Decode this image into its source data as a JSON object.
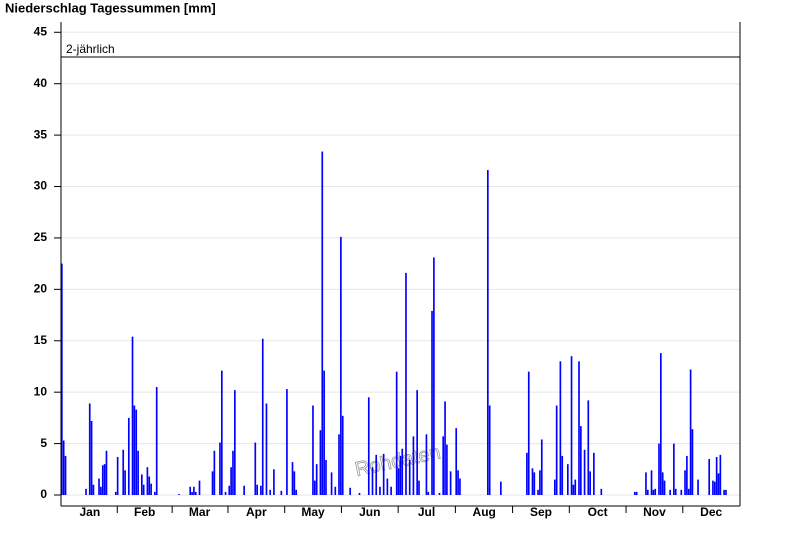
{
  "chart_data": {
    "type": "bar",
    "title": "Niederschlag Tagessummen [mm]",
    "watermark": "Rohdaten",
    "x": [
      1,
      2,
      3,
      14,
      16,
      17,
      18,
      21,
      22,
      23,
      24,
      25,
      30,
      31,
      34,
      35,
      37,
      39,
      40,
      41,
      42,
      44,
      45,
      47,
      48,
      49,
      51,
      52,
      64,
      70,
      71,
      72,
      73,
      75,
      82,
      83,
      86,
      87,
      89,
      91,
      92,
      93,
      94,
      99,
      105,
      106,
      108,
      109,
      111,
      113,
      115,
      119,
      122,
      125,
      126,
      127,
      136,
      137,
      138,
      140,
      141,
      142,
      143,
      146,
      148,
      150,
      151,
      152,
      156,
      161,
      166,
      168,
      170,
      172,
      174,
      176,
      178,
      181,
      182,
      183,
      184,
      186,
      188,
      190,
      192,
      193,
      197,
      198,
      200,
      201,
      204,
      206,
      207,
      208,
      210,
      213,
      214,
      215,
      230,
      231,
      237,
      251,
      252,
      254,
      255,
      257,
      258,
      259,
      266,
      267,
      269,
      270,
      273,
      275,
      276,
      277,
      279,
      280,
      282,
      284,
      285,
      287,
      291,
      309,
      310,
      315,
      316,
      318,
      319,
      320,
      322,
      323,
      324,
      325,
      328,
      330,
      331,
      334,
      336,
      337,
      338,
      339,
      340,
      343,
      349,
      351,
      352,
      353,
      354,
      355,
      357,
      358
    ],
    "values": [
      22.5,
      5.3,
      3.8,
      0.6,
      8.9,
      7.2,
      1,
      1.6,
      0.8,
      2.9,
      3,
      4.3,
      0.3,
      3.7,
      4.4,
      2.4,
      7.5,
      15.4,
      8.7,
      8.3,
      4.3,
      2,
      1,
      2.7,
      1.8,
      1.1,
      0.3,
      10.5,
      0.1,
      0.8,
      0.3,
      0.8,
      0.3,
      1.4,
      2.3,
      4.3,
      5.1,
      12.1,
      0.3,
      0.9,
      2.7,
      4.3,
      10.2,
      0.9,
      5.1,
      1,
      0.9,
      15.2,
      8.9,
      0.5,
      2.5,
      0.4,
      10.3,
      3.2,
      2.3,
      0.5,
      8.7,
      1.4,
      3,
      6.3,
      33.4,
      12.1,
      3.4,
      2.2,
      0.8,
      5.9,
      25.1,
      7.7,
      0.7,
      0.2,
      9.5,
      2.7,
      3.9,
      0.8,
      4,
      1.6,
      0.8,
      12,
      2.6,
      3.8,
      4.5,
      21.6,
      3.4,
      5.7,
      10.2,
      1.4,
      5.9,
      0.3,
      17.9,
      23.1,
      0.2,
      5.7,
      9.1,
      4.9,
      2.3,
      6.5,
      2.4,
      1.6,
      31.6,
      8.7,
      1.3,
      4.1,
      12,
      2.6,
      2.2,
      0.5,
      2.4,
      5.4,
      1.5,
      8.7,
      13,
      3.8,
      3,
      13.5,
      1,
      1.5,
      13,
      6.7,
      4.4,
      9.2,
      2.3,
      4.1,
      0.6,
      0.3,
      0.3,
      2.2,
      0.5,
      2.4,
      0.5,
      0.6,
      5,
      13.8,
      2.2,
      1.4,
      0.5,
      5,
      0.6,
      0.5,
      2.4,
      3.8,
      0.6,
      12.2,
      6.4,
      1.5,
      3.5,
      1.4,
      1.3,
      3.7,
      2.1,
      3.9,
      0.5,
      0.5
    ],
    "color": "#0000ff",
    "xlim": [
      0,
      365
    ],
    "xticks": [
      {
        "value": 15.5,
        "label": "Jan"
      },
      {
        "value": 45,
        "label": "Feb"
      },
      {
        "value": 74.5,
        "label": "Mar"
      },
      {
        "value": 105,
        "label": "Apr"
      },
      {
        "value": 135.5,
        "label": "May"
      },
      {
        "value": 166,
        "label": "Jun"
      },
      {
        "value": 196.5,
        "label": "Jul"
      },
      {
        "value": 227.5,
        "label": "Aug"
      },
      {
        "value": 258,
        "label": "Sep"
      },
      {
        "value": 288.5,
        "label": "Oct"
      },
      {
        "value": 319,
        "label": "Nov"
      },
      {
        "value": 349.5,
        "label": "Dec"
      }
    ],
    "ylim": [
      0,
      46
    ],
    "yticks": [
      0,
      5,
      10,
      15,
      20,
      25,
      30,
      35,
      40,
      45
    ],
    "grid": true,
    "threshold": {
      "value": 42.6,
      "label": "2-jährlich"
    }
  }
}
